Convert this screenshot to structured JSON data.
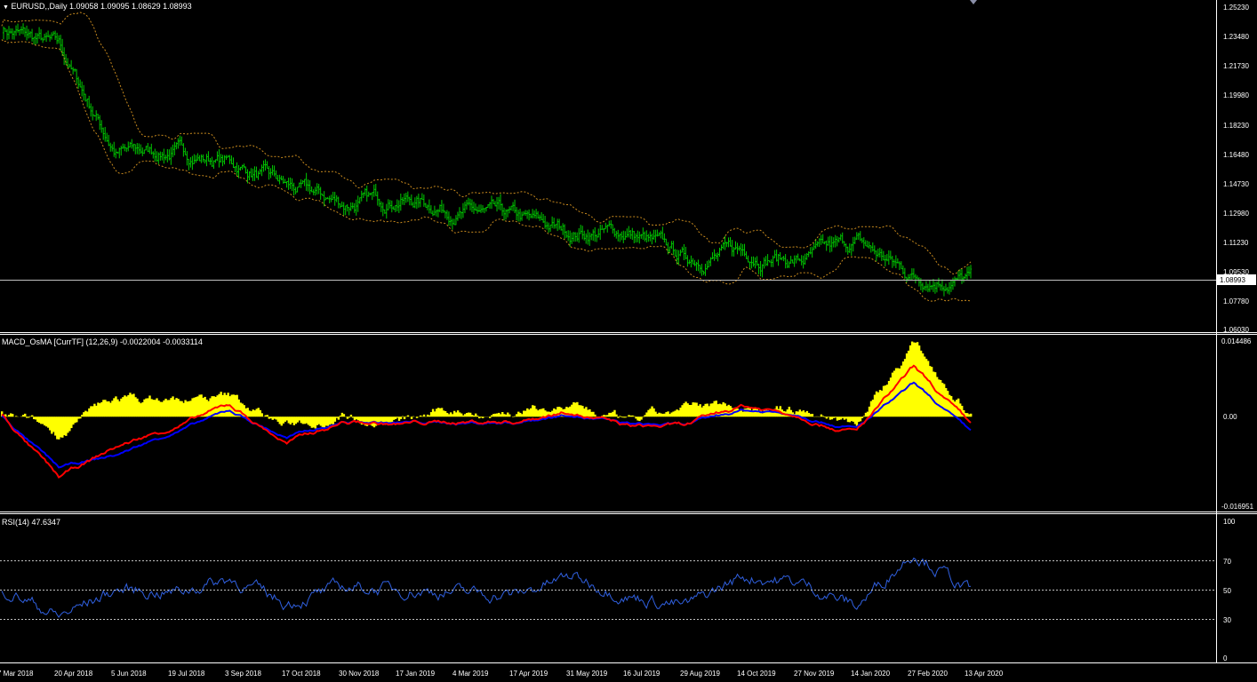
{
  "window": {
    "symbol_title": "EURUSD,,Daily",
    "ohlc": "1.09058 1.09095 1.08629 1.08993",
    "current_price": "1.08993"
  },
  "panes": {
    "price": {
      "y_labels": [
        "1.25230",
        "1.23480",
        "1.21730",
        "1.19980",
        "1.18230",
        "1.16480",
        "1.14730",
        "1.12980",
        "1.11230",
        "1.09530",
        "1.07780",
        "1.06030"
      ],
      "ylim": [
        1.0603,
        1.2523
      ],
      "colors": {
        "candles": "#00c800",
        "bands": "#c88a1e",
        "price_line": "#c0c0c0"
      }
    },
    "macd": {
      "title": "MACD_OsMA [CurrTF] (12,26,9) -0.0022004 -0.0033114",
      "y_labels": [
        "0.014486",
        "0.00",
        "-0.016951"
      ],
      "ylim": [
        -0.016951,
        0.0144867
      ],
      "colors": {
        "histogram": "#ffff00",
        "macd_line": "#ff0000",
        "signal_line": "#0000ff"
      }
    },
    "rsi": {
      "title": "RSI(14) 47.6347",
      "y_labels": [
        "100",
        "70",
        "50",
        "30",
        "0"
      ],
      "levels": [
        70,
        50,
        30
      ],
      "color": "#3060e0"
    }
  },
  "x_axis": {
    "labels": [
      "7 Mar 2018",
      "20 Apr 2018",
      "5 Jun 2018",
      "19 Jul 2018",
      "3 Sep 2018",
      "17 Oct 2018",
      "30 Nov 2018",
      "17 Jan 2019",
      "4 Mar 2019",
      "17 Apr 2019",
      "31 May 2019",
      "16 Jul 2019",
      "29 Aug 2019",
      "14 Oct 2019",
      "27 Nov 2019",
      "14 Jan 2020",
      "27 Feb 2020",
      "13 Apr 2020"
    ]
  },
  "chart_data": [
    {
      "type": "candlestick",
      "title": "EURUSD,,Daily",
      "x": [
        "7 Mar 2018",
        "20 Apr 2018",
        "5 Jun 2018",
        "19 Jul 2018",
        "3 Sep 2018",
        "17 Oct 2018",
        "30 Nov 2018",
        "17 Jan 2019",
        "4 Mar 2019",
        "17 Apr 2019",
        "31 May 2019",
        "16 Jul 2019",
        "29 Aug 2019",
        "14 Oct 2019",
        "27 Nov 2019",
        "14 Jan 2020",
        "27 Feb 2020",
        "13 Apr 2020"
      ],
      "close_approx": [
        1.24,
        1.228,
        1.166,
        1.166,
        1.16,
        1.145,
        1.135,
        1.139,
        1.131,
        1.126,
        1.118,
        1.118,
        1.102,
        1.107,
        1.101,
        1.112,
        1.092,
        1.09
      ],
      "ylim": [
        1.0603,
        1.2523
      ]
    },
    {
      "type": "bar",
      "title": "MACD_OsMA [CurrTF] (12,26,9)",
      "x": [
        "7 Mar 2018",
        "20 Apr 2018",
        "5 Jun 2018",
        "19 Jul 2018",
        "3 Sep 2018",
        "17 Oct 2018",
        "30 Nov 2018",
        "17 Jan 2019",
        "4 Mar 2019",
        "17 Apr 2019",
        "31 May 2019",
        "16 Jul 2019",
        "29 Aug 2019",
        "14 Oct 2019",
        "27 Nov 2019",
        "14 Jan 2020",
        "27 Feb 2020",
        "13 Apr 2020"
      ],
      "series": [
        {
          "values": [
            0.0005,
            -0.0035,
            0.0035,
            0.003,
            0.0035,
            -0.002,
            0.001,
            -0.001,
            0.0012,
            0.001,
            0.002,
            -0.0015,
            0.001,
            0.0025,
            0.001,
            -0.001,
            0.014,
            0.001
          ]
        },
        {
          "values": [
            0.0005,
            -0.012,
            -0.006,
            -0.002,
            0.002,
            -0.005,
            -0.001,
            -0.0015,
            -0.001,
            -0.0008,
            0.0015,
            -0.002,
            -0.002,
            0.002,
            0.0005,
            -0.0025,
            0.009,
            -0.0022
          ]
        },
        {
          "values": [
            0.0002,
            -0.01,
            -0.0075,
            -0.003,
            0.001,
            -0.004,
            -0.001,
            -0.0012,
            -0.0012,
            -0.001,
            0.0008,
            -0.0015,
            -0.0018,
            0.0012,
            0.0006,
            -0.002,
            0.006,
            -0.0033
          ]
        }
      ],
      "ylim": [
        -0.016951,
        0.0144867
      ]
    },
    {
      "type": "line",
      "title": "RSI(14)",
      "x": [
        "7 Mar 2018",
        "20 Apr 2018",
        "5 Jun 2018",
        "19 Jul 2018",
        "3 Sep 2018",
        "17 Oct 2018",
        "30 Nov 2018",
        "17 Jan 2019",
        "4 Mar 2019",
        "17 Apr 2019",
        "31 May 2019",
        "16 Jul 2019",
        "29 Aug 2019",
        "14 Oct 2019",
        "27 Nov 2019",
        "14 Jan 2020",
        "27 Feb 2020",
        "13 Apr 2020"
      ],
      "values": [
        52,
        30,
        50,
        48,
        58,
        40,
        52,
        50,
        48,
        46,
        60,
        45,
        38,
        60,
        55,
        38,
        78,
        47.6347
      ],
      "ylim": [
        0,
        100
      ]
    }
  ]
}
